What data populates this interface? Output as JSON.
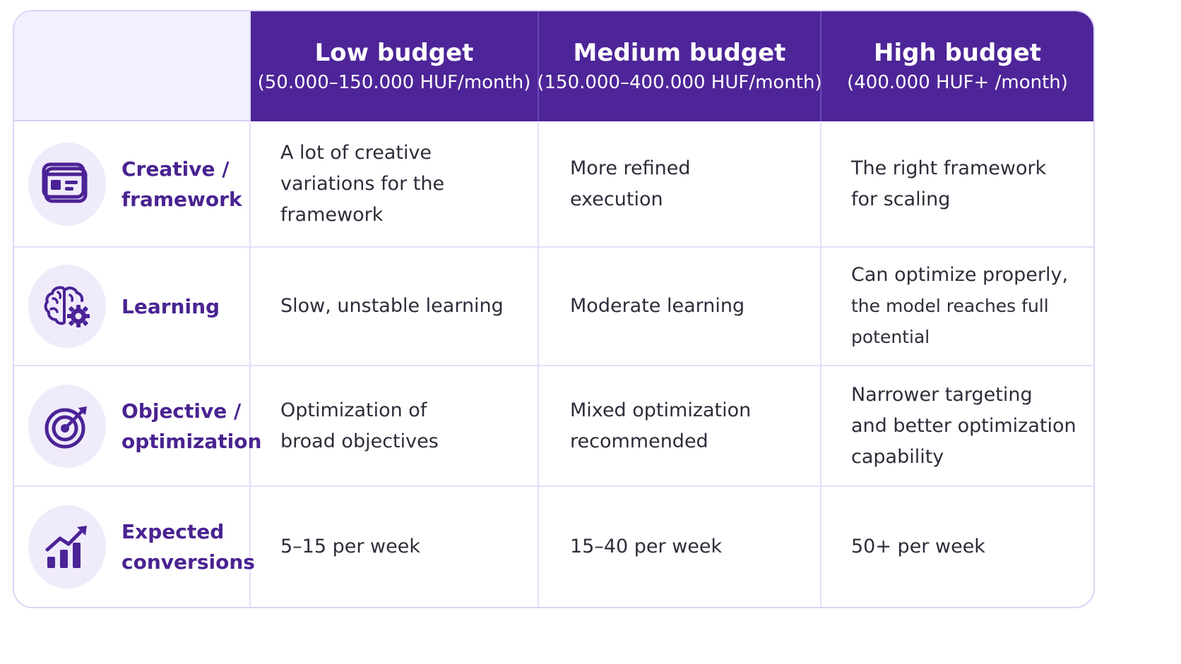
{
  "chart_data": {
    "type": "table",
    "columns": [
      {
        "title": "Low budget",
        "range": "(50.000–150.000 HUF/month)"
      },
      {
        "title": "Medium budget",
        "range": "(150.000–400.000 HUF/month)"
      },
      {
        "title": "High budget",
        "range": "(400.000 HUF+ /month)"
      }
    ],
    "rows": [
      {
        "label_lines": [
          "Creative /",
          "framework"
        ],
        "icon": "creative-framework-icon",
        "cells": [
          [
            "A lot of creative",
            "variations for the framework"
          ],
          [
            "More refined",
            "execution"
          ],
          [
            "The right framework",
            "for scaling"
          ]
        ]
      },
      {
        "label_lines": [
          "Learning"
        ],
        "icon": "brain-gear-icon",
        "cells": [
          [
            "Slow, unstable learning"
          ],
          [
            "Moderate learning"
          ],
          [
            "Can optimize properly,",
            "the model reaches full potential"
          ]
        ]
      },
      {
        "label_lines": [
          "Objective /",
          "optimization"
        ],
        "icon": "target-icon",
        "cells": [
          [
            "Optimization of",
            "broad objectives"
          ],
          [
            "Mixed optimization",
            "recommended"
          ],
          [
            "Narrower targeting",
            "and better optimization",
            "capability"
          ]
        ]
      },
      {
        "label_lines": [
          "Expected",
          "conversions"
        ],
        "icon": "growth-chart-icon",
        "cells": [
          [
            "5–15 per week"
          ],
          [
            "15–40 per week"
          ],
          [
            "50+ per week"
          ]
        ]
      }
    ]
  },
  "colors": {
    "header_bg": "#4d2598",
    "header_text": "#ffffff",
    "corner_bg": "#f3efff",
    "label_text": "#4a2391",
    "icon_bg": "#f0ebfb",
    "body_text": "#2d2d3a",
    "grid_line": "#e5defa"
  }
}
